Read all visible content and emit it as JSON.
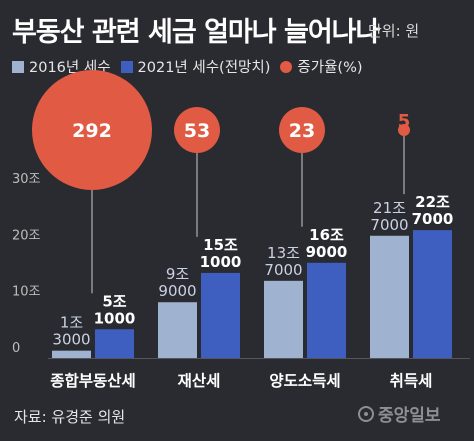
{
  "title": "부동산 관련 세금 얼마나 늘어나나",
  "unit": "단위: 원",
  "source": "자료: 유경준 의원",
  "brand": "중앙일보",
  "colors": {
    "background": "#2a2a31",
    "series_2016": "#9fb2cf",
    "series_2021": "#3e5ec0",
    "growth": "#e05a44",
    "axis_text": "#bdbdbd"
  },
  "chart_data": {
    "type": "bar",
    "title": "부동산 관련 세금 얼마나 늘어나나",
    "unit": "단위: 원",
    "categories": [
      "종합부동산세",
      "재산세",
      "양도소득세",
      "취득세"
    ],
    "series": [
      {
        "name": "2016년 세수",
        "values": [
          13000,
          99000,
          137000,
          217000
        ],
        "labels": [
          [
            "1조",
            "3000"
          ],
          [
            "9조",
            "9000"
          ],
          [
            "13조",
            "7000"
          ],
          [
            "21조",
            "7000"
          ]
        ]
      },
      {
        "name": "2021년 세수(전망치)",
        "values": [
          51000,
          151000,
          169000,
          227000
        ],
        "labels": [
          [
            "5조",
            "1000"
          ],
          [
            "15조",
            "1000"
          ],
          [
            "16조",
            "9000"
          ],
          [
            "22조",
            "7000"
          ]
        ]
      }
    ],
    "growth": {
      "name": "증가율(%)",
      "values": [
        "292",
        "53",
        "23",
        "5"
      ]
    },
    "y_axis": {
      "ticks": [
        {
          "value": 0,
          "label": "0"
        },
        {
          "value": 100000,
          "label": "10조"
        },
        {
          "value": 200000,
          "label": "20조"
        },
        {
          "value": 300000,
          "label": "30조"
        }
      ],
      "ylim": [
        0,
        300000
      ],
      "value_unit": "억 원"
    },
    "legend": {
      "position": "top-left",
      "entries": [
        "2016년 세수",
        "2021년 세수(전망치)",
        "증가율(%)"
      ]
    },
    "grid": false
  }
}
